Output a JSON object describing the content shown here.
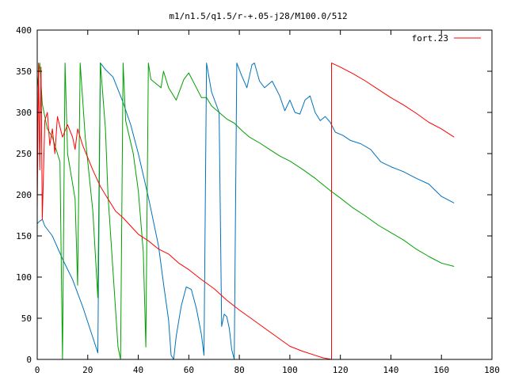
{
  "chart_data": {
    "type": "line",
    "title": "m1/n1.5/q1.5/r-+.05-j28/M100.0/512",
    "xlabel": "",
    "ylabel": "",
    "xlim": [
      0,
      180
    ],
    "ylim": [
      0,
      400
    ],
    "x_ticks": [
      "0",
      "20",
      "40",
      "60",
      "80",
      "100",
      "120",
      "140",
      "160",
      "180"
    ],
    "y_ticks": [
      "0",
      "50",
      "100",
      "150",
      "200",
      "250",
      "300",
      "350",
      "400"
    ],
    "grid": false,
    "legend_position": "top-right",
    "legend": [
      {
        "label": "fort.23",
        "color": "#ff0000"
      }
    ],
    "series": [
      {
        "color": "#0072bd",
        "points": [
          [
            0,
            165
          ],
          [
            1,
            168
          ],
          [
            2,
            170
          ],
          [
            3,
            162
          ],
          [
            6,
            150
          ],
          [
            10,
            122
          ],
          [
            14,
            97
          ],
          [
            18,
            64
          ],
          [
            21,
            36
          ],
          [
            24,
            8
          ],
          [
            25,
            360
          ],
          [
            27,
            352
          ],
          [
            30,
            343
          ],
          [
            34,
            312
          ],
          [
            37,
            285
          ],
          [
            40,
            250
          ],
          [
            44,
            197
          ],
          [
            48,
            138
          ],
          [
            50,
            92
          ],
          [
            52,
            48
          ],
          [
            53,
            5
          ],
          [
            54,
            0
          ],
          [
            55,
            28
          ],
          [
            57,
            65
          ],
          [
            59,
            88
          ],
          [
            61,
            85
          ],
          [
            63,
            62
          ],
          [
            65,
            30
          ],
          [
            66,
            5
          ],
          [
            67,
            360
          ],
          [
            69,
            325
          ],
          [
            72,
            300
          ],
          [
            73,
            40
          ],
          [
            74,
            55
          ],
          [
            75,
            52
          ],
          [
            76,
            38
          ],
          [
            77,
            12
          ],
          [
            78,
            0
          ],
          [
            79,
            360
          ],
          [
            81,
            344
          ],
          [
            83,
            330
          ],
          [
            85,
            358
          ],
          [
            86,
            360
          ],
          [
            88,
            338
          ],
          [
            90,
            330
          ],
          [
            93,
            338
          ],
          [
            96,
            320
          ],
          [
            98,
            302
          ],
          [
            100,
            315
          ],
          [
            102,
            300
          ],
          [
            104,
            298
          ],
          [
            106,
            315
          ],
          [
            108,
            320
          ],
          [
            110,
            300
          ],
          [
            112,
            290
          ],
          [
            114,
            295
          ],
          [
            116,
            288
          ],
          [
            118,
            276
          ],
          [
            121,
            272
          ],
          [
            124,
            266
          ],
          [
            128,
            262
          ],
          [
            132,
            255
          ],
          [
            136,
            240
          ],
          [
            140,
            234
          ],
          [
            145,
            228
          ],
          [
            150,
            220
          ],
          [
            155,
            213
          ],
          [
            160,
            198
          ],
          [
            165,
            190
          ]
        ]
      },
      {
        "color": "#00a000",
        "points": [
          [
            0,
            330
          ],
          [
            1,
            360
          ],
          [
            2,
            310
          ],
          [
            4,
            280
          ],
          [
            6,
            270
          ],
          [
            9,
            240
          ],
          [
            10,
            0
          ],
          [
            11,
            360
          ],
          [
            12,
            250
          ],
          [
            15,
            195
          ],
          [
            16,
            90
          ],
          [
            17,
            360
          ],
          [
            19,
            270
          ],
          [
            22,
            180
          ],
          [
            24,
            75
          ],
          [
            25,
            360
          ],
          [
            27,
            280
          ],
          [
            28,
            200
          ],
          [
            31,
            60
          ],
          [
            32,
            15
          ],
          [
            33,
            0
          ],
          [
            34,
            360
          ],
          [
            35,
            290
          ],
          [
            38,
            250
          ],
          [
            40,
            205
          ],
          [
            42,
            130
          ],
          [
            43,
            15
          ],
          [
            44,
            360
          ],
          [
            45,
            340
          ],
          [
            47,
            335
          ],
          [
            49,
            330
          ],
          [
            50,
            350
          ],
          [
            52,
            330
          ],
          [
            55,
            315
          ],
          [
            58,
            340
          ],
          [
            60,
            348
          ],
          [
            63,
            330
          ],
          [
            65,
            318
          ],
          [
            67,
            318
          ],
          [
            69,
            308
          ],
          [
            72,
            300
          ],
          [
            75,
            292
          ],
          [
            78,
            287
          ],
          [
            81,
            278
          ],
          [
            84,
            270
          ],
          [
            88,
            263
          ],
          [
            92,
            255
          ],
          [
            96,
            247
          ],
          [
            100,
            241
          ],
          [
            105,
            231
          ],
          [
            110,
            220
          ],
          [
            116,
            205
          ],
          [
            120,
            196
          ],
          [
            125,
            184
          ],
          [
            130,
            174
          ],
          [
            135,
            163
          ],
          [
            140,
            154
          ],
          [
            145,
            145
          ],
          [
            150,
            134
          ],
          [
            155,
            125
          ],
          [
            160,
            117
          ],
          [
            165,
            113
          ]
        ]
      },
      {
        "name": "fort.23",
        "color": "#ff0000",
        "points": [
          [
            0,
            180
          ],
          [
            0.5,
            360
          ],
          [
            1,
            230
          ],
          [
            1.5,
            355
          ],
          [
            2,
            170
          ],
          [
            3,
            290
          ],
          [
            4,
            300
          ],
          [
            5,
            260
          ],
          [
            6,
            280
          ],
          [
            7,
            250
          ],
          [
            8,
            295
          ],
          [
            10,
            270
          ],
          [
            12,
            285
          ],
          [
            14,
            270
          ],
          [
            15,
            255
          ],
          [
            16,
            280
          ],
          [
            18,
            260
          ],
          [
            20,
            245
          ],
          [
            22,
            230
          ],
          [
            25,
            210
          ],
          [
            28,
            195
          ],
          [
            31,
            180
          ],
          [
            34,
            172
          ],
          [
            37,
            162
          ],
          [
            40,
            152
          ],
          [
            44,
            144
          ],
          [
            48,
            134
          ],
          [
            52,
            128
          ],
          [
            56,
            117
          ],
          [
            60,
            109
          ],
          [
            65,
            97
          ],
          [
            70,
            86
          ],
          [
            75,
            72
          ],
          [
            80,
            60
          ],
          [
            85,
            49
          ],
          [
            90,
            38
          ],
          [
            95,
            27
          ],
          [
            100,
            16
          ],
          [
            105,
            10
          ],
          [
            110,
            5
          ],
          [
            113,
            2
          ],
          [
            116.5,
            0
          ],
          [
            116.5,
            360
          ],
          [
            120,
            355
          ],
          [
            125,
            347
          ],
          [
            130,
            338
          ],
          [
            135,
            328
          ],
          [
            140,
            318
          ],
          [
            145,
            309
          ],
          [
            150,
            299
          ],
          [
            155,
            288
          ],
          [
            160,
            280
          ],
          [
            165,
            270
          ]
        ]
      }
    ]
  }
}
